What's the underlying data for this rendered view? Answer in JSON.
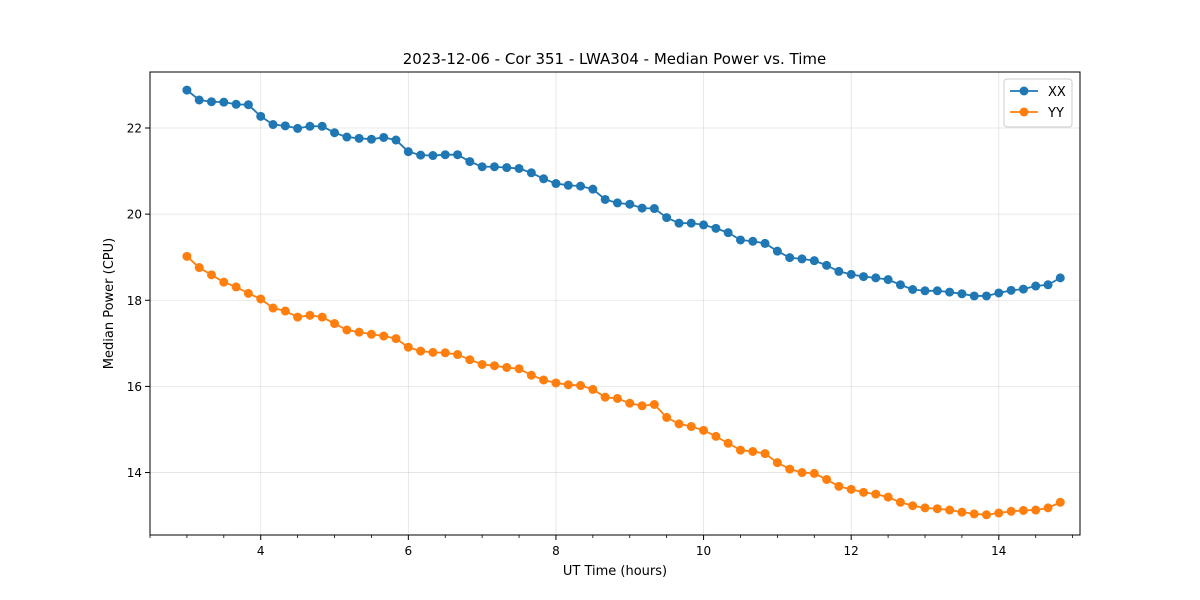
{
  "chart_data": {
    "type": "line",
    "title": "2023-12-06 - Cor 351 - LWA304 - Median Power vs. Time",
    "xlabel": "UT Time (hours)",
    "ylabel": "Median Power (CPU)",
    "xlim": [
      2.5,
      15.1
    ],
    "ylim": [
      12.55,
      23.3
    ],
    "xticks": [
      4,
      6,
      8,
      10,
      12,
      14
    ],
    "xtick_labels": [
      "4",
      "6",
      "8",
      "10",
      "12",
      "14"
    ],
    "yticks": [
      14,
      16,
      18,
      20,
      22
    ],
    "ytick_labels": [
      "14",
      "16",
      "18",
      "20",
      "22"
    ],
    "grid": true,
    "legend_position": "top-right",
    "x": [
      3.0,
      3.167,
      3.333,
      3.5,
      3.667,
      3.833,
      4.0,
      4.167,
      4.333,
      4.5,
      4.667,
      4.833,
      5.0,
      5.167,
      5.333,
      5.5,
      5.667,
      5.833,
      6.0,
      6.167,
      6.333,
      6.5,
      6.667,
      6.833,
      7.0,
      7.167,
      7.333,
      7.5,
      7.667,
      7.833,
      8.0,
      8.167,
      8.333,
      8.5,
      8.667,
      8.833,
      9.0,
      9.167,
      9.333,
      9.5,
      9.667,
      9.833,
      10.0,
      10.167,
      10.333,
      10.5,
      10.667,
      10.833,
      11.0,
      11.167,
      11.333,
      11.5,
      11.667,
      11.833,
      12.0,
      12.167,
      12.333,
      12.5,
      12.667,
      12.833,
      13.0,
      13.167,
      13.333,
      13.5,
      13.667,
      13.833,
      14.0,
      14.167,
      14.333,
      14.5,
      14.667,
      14.833
    ],
    "series": [
      {
        "name": "XX",
        "color": "#1f77b4",
        "values": [
          22.88,
          22.65,
          22.61,
          22.6,
          22.55,
          22.54,
          22.27,
          22.08,
          22.05,
          21.99,
          22.04,
          22.04,
          21.89,
          21.79,
          21.76,
          21.74,
          21.78,
          21.72,
          21.45,
          21.37,
          21.36,
          21.38,
          21.38,
          21.22,
          21.1,
          21.1,
          21.08,
          21.06,
          20.96,
          20.82,
          20.71,
          20.67,
          20.65,
          20.58,
          20.34,
          20.26,
          20.23,
          20.14,
          20.13,
          19.92,
          19.79,
          19.79,
          19.75,
          19.67,
          19.57,
          19.4,
          19.37,
          19.32,
          19.14,
          18.99,
          18.96,
          18.92,
          18.81,
          18.67,
          18.6,
          18.55,
          18.52,
          18.48,
          18.36,
          18.25,
          18.22,
          18.22,
          18.19,
          18.15,
          18.1,
          18.1,
          18.17,
          18.23,
          18.26,
          18.33,
          18.36,
          18.52
        ]
      },
      {
        "name": "YY",
        "color": "#ff7f0e",
        "values": [
          19.02,
          18.76,
          18.59,
          18.42,
          18.31,
          18.16,
          18.03,
          17.82,
          17.75,
          17.61,
          17.65,
          17.61,
          17.46,
          17.31,
          17.26,
          17.21,
          17.17,
          17.11,
          16.91,
          16.82,
          16.79,
          16.78,
          16.74,
          16.62,
          16.51,
          16.48,
          16.44,
          16.41,
          16.26,
          16.15,
          16.08,
          16.04,
          16.02,
          15.93,
          15.75,
          15.72,
          15.61,
          15.55,
          15.58,
          15.28,
          15.13,
          15.07,
          14.98,
          14.84,
          14.68,
          14.52,
          14.49,
          14.44,
          14.23,
          14.08,
          14.0,
          13.98,
          13.84,
          13.68,
          13.61,
          13.54,
          13.5,
          13.43,
          13.31,
          13.23,
          13.18,
          13.16,
          13.13,
          13.08,
          13.04,
          13.02,
          13.06,
          13.1,
          13.12,
          13.13,
          13.18,
          13.31
        ]
      }
    ]
  }
}
